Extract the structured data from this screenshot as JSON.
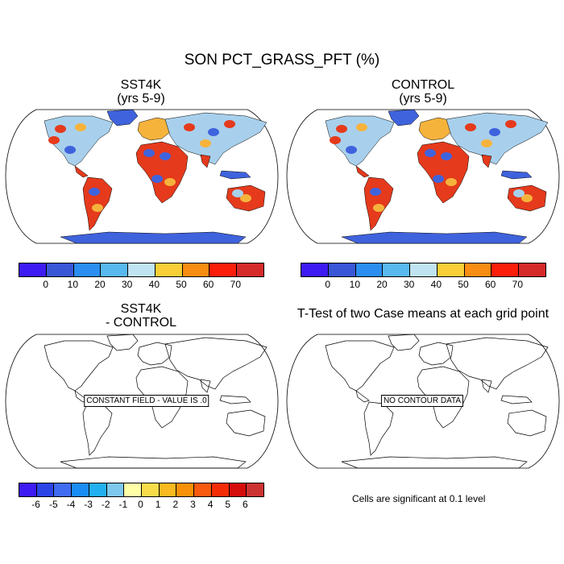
{
  "title": "SON PCT_GRASS_PFT (%)",
  "panels": {
    "top_left": {
      "title": "SST4K\n(yrs 5-9)"
    },
    "top_right": {
      "title": "CONTROL\n(yrs 5-9)"
    },
    "bottom_left": {
      "title": "SST4K\n- CONTROL",
      "message": "CONSTANT FIELD - VALUE IS .0"
    },
    "bottom_right": {
      "title": "T-Test of two Case means at each grid point",
      "message": "NO CONTOUR DATA"
    }
  },
  "colorbar_main": {
    "colors": [
      "#3d1bf2",
      "#3957d6",
      "#2b8ef0",
      "#58b9ee",
      "#c0e3f2",
      "#f8cf36",
      "#f78d12",
      "#fa1e0b",
      "#d52a2a"
    ],
    "labels": [
      "0",
      "10",
      "20",
      "30",
      "40",
      "50",
      "60",
      "70"
    ]
  },
  "colorbar_diff": {
    "colors": [
      "#3d1bf2",
      "#2b44e6",
      "#3f6cf0",
      "#1a8cf5",
      "#23b0f0",
      "#7ec8ee",
      "#ffffa8",
      "#f9dc4a",
      "#f8b820",
      "#f89108",
      "#f85a10",
      "#f42c07",
      "#d40c0c",
      "#cd3232"
    ],
    "labels": [
      "-6",
      "-5",
      "-4",
      "-3",
      "-2",
      "-1",
      "0",
      "1",
      "2",
      "3",
      "4",
      "5",
      "6"
    ]
  },
  "significance_note": "Cells are significant at 0.1 level"
}
